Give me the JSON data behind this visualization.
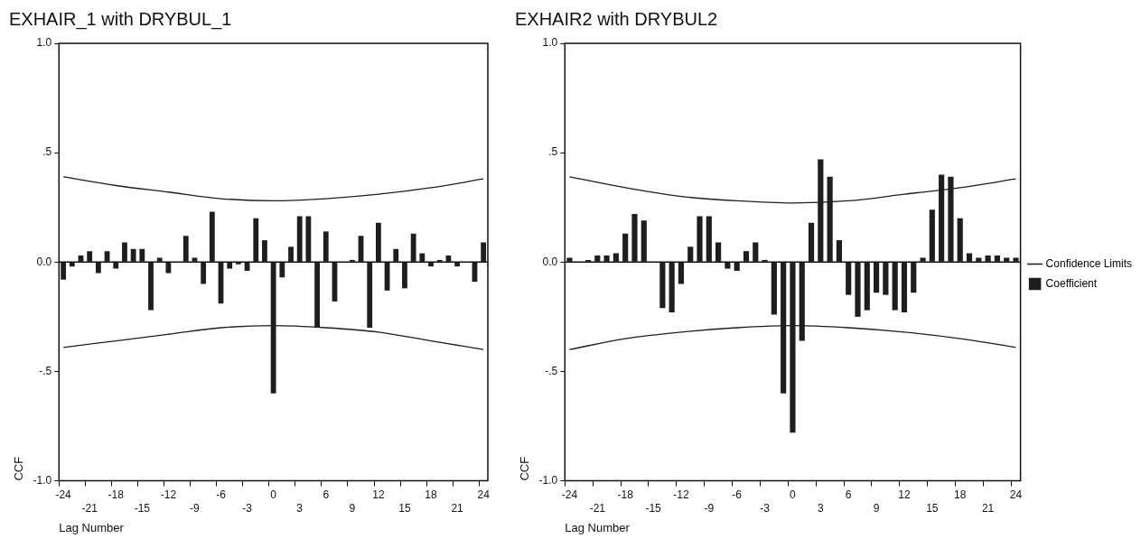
{
  "chart_data": [
    {
      "type": "bar",
      "title": "EXHAIR_1 with DRYBUL_1",
      "xlabel": "Lag Number",
      "ylabel": "CCF",
      "categories": [
        "-24",
        null,
        null,
        "-21",
        null,
        null,
        "-18",
        null,
        null,
        "-15",
        null,
        null,
        "-12",
        null,
        null,
        "-9",
        null,
        null,
        "-6",
        null,
        null,
        "-3",
        null,
        null,
        "0",
        null,
        null,
        "3",
        null,
        null,
        "6",
        null,
        null,
        "9",
        null,
        null,
        "12",
        null,
        null,
        "15",
        null,
        null,
        "18",
        null,
        null,
        "21",
        null,
        null,
        "24"
      ],
      "series": [
        {
          "color": "#1e1e1e",
          "values": [
            -0.08,
            -0.02,
            0.03,
            0.05,
            -0.05,
            0.05,
            -0.03,
            0.09,
            0.06,
            0.06,
            -0.22,
            0.02,
            -0.05,
            0.0,
            0.12,
            0.02,
            -0.1,
            0.23,
            -0.19,
            -0.03,
            -0.01,
            -0.04,
            0.2,
            0.1,
            -0.6,
            -0.07,
            0.07,
            0.21,
            0.21,
            -0.3,
            0.14,
            -0.18,
            0.0,
            0.01,
            0.12,
            -0.3,
            0.18,
            -0.13,
            0.06,
            -0.12,
            0.13,
            0.04,
            -0.02,
            0.01,
            0.03,
            -0.02,
            0.0,
            -0.09,
            0.09
          ]
        },
        {
          "type": "line",
          "color": "#1e1e1e",
          "values": [
            0.39,
            null,
            null,
            null,
            null,
            null,
            0.35,
            null,
            null,
            null,
            null,
            null,
            0.32,
            null,
            null,
            null,
            null,
            null,
            0.29,
            null,
            null,
            null,
            null,
            null,
            0.28,
            null,
            null,
            null,
            null,
            null,
            0.29,
            null,
            null,
            null,
            null,
            null,
            0.31,
            null,
            null,
            null,
            null,
            null,
            0.34,
            null,
            null,
            null,
            null,
            null,
            0.38
          ]
        },
        {
          "type": "line",
          "color": "#1e1e1e",
          "values": [
            -0.39,
            null,
            null,
            null,
            null,
            null,
            -0.36,
            null,
            null,
            null,
            null,
            null,
            -0.33,
            null,
            null,
            null,
            null,
            null,
            -0.3,
            null,
            null,
            null,
            null,
            null,
            -0.29,
            null,
            null,
            null,
            null,
            null,
            -0.3,
            null,
            null,
            null,
            null,
            null,
            -0.32,
            null,
            null,
            null,
            null,
            null,
            -0.36,
            null,
            null,
            null,
            null,
            null,
            -0.4
          ]
        }
      ],
      "ylim": [
        -1,
        1
      ],
      "yticks": [
        {
          "value": -1,
          "label": "-1.0"
        },
        {
          "value": -0.5,
          "label": "-.5"
        },
        {
          "value": 0,
          "label": "0.0"
        },
        {
          "value": 0.5,
          "label": ".5"
        },
        {
          "value": 1,
          "label": "1.0"
        }
      ],
      "ref_lines": [
        {
          "axis": "y",
          "value": 0
        }
      ],
      "marker": "none"
    },
    {
      "type": "bar",
      "title": "EXHAIR2 with DRYBUL2",
      "xlabel": "Lag Number",
      "ylabel": "CCF",
      "categories": [
        "-24",
        null,
        null,
        "-21",
        null,
        null,
        "-18",
        null,
        null,
        "-15",
        null,
        null,
        "-12",
        null,
        null,
        "-9",
        null,
        null,
        "-6",
        null,
        null,
        "-3",
        null,
        null,
        "0",
        null,
        null,
        "3",
        null,
        null,
        "6",
        null,
        null,
        "9",
        null,
        null,
        "12",
        null,
        null,
        "15",
        null,
        null,
        "18",
        null,
        null,
        "21",
        null,
        null,
        "24"
      ],
      "series": [
        {
          "name": "Confidence Limits",
          "type": "line",
          "color": "#1e1e1e",
          "values": [
            0.39,
            null,
            null,
            null,
            null,
            null,
            0.34,
            null,
            null,
            null,
            null,
            null,
            0.3,
            null,
            null,
            null,
            null,
            null,
            0.28,
            null,
            null,
            null,
            null,
            null,
            0.27,
            null,
            null,
            null,
            null,
            null,
            0.28,
            null,
            null,
            null,
            null,
            null,
            0.31,
            null,
            null,
            null,
            null,
            null,
            0.34,
            null,
            null,
            null,
            null,
            null,
            0.38
          ]
        },
        {
          "name": "Coefficient",
          "color": "#1e1e1e",
          "values": [
            0.02,
            0.0,
            0.01,
            0.03,
            0.03,
            0.04,
            0.13,
            0.22,
            0.19,
            0.0,
            -0.21,
            -0.23,
            -0.1,
            0.07,
            0.21,
            0.21,
            0.09,
            -0.03,
            -0.04,
            0.05,
            0.09,
            0.01,
            -0.24,
            -0.6,
            -0.78,
            -0.36,
            0.18,
            0.47,
            0.39,
            0.1,
            -0.15,
            -0.25,
            -0.22,
            -0.14,
            -0.15,
            -0.22,
            -0.23,
            -0.14,
            0.02,
            0.24,
            0.4,
            0.39,
            0.2,
            0.04,
            0.02,
            0.03,
            0.03,
            0.02,
            0.02
          ]
        },
        {
          "type": "line",
          "color": "#1e1e1e",
          "values": [
            -0.4,
            null,
            null,
            null,
            null,
            null,
            -0.35,
            null,
            null,
            null,
            null,
            null,
            -0.32,
            null,
            null,
            null,
            null,
            null,
            -0.3,
            null,
            null,
            null,
            null,
            null,
            -0.29,
            null,
            null,
            null,
            null,
            null,
            -0.3,
            null,
            null,
            null,
            null,
            null,
            -0.32,
            null,
            null,
            null,
            null,
            null,
            -0.35,
            null,
            null,
            null,
            null,
            null,
            -0.39
          ]
        }
      ],
      "ylim": [
        -1,
        1
      ],
      "yticks": [
        {
          "value": -1,
          "label": "-1.0"
        },
        {
          "value": -0.5,
          "label": "-.5"
        },
        {
          "value": 0,
          "label": "0.0"
        },
        {
          "value": 0.5,
          "label": ".5"
        },
        {
          "value": 1,
          "label": "1.0"
        }
      ],
      "ref_lines": [
        {
          "axis": "y",
          "value": 0
        }
      ],
      "marker": "none",
      "legend": "right"
    }
  ]
}
